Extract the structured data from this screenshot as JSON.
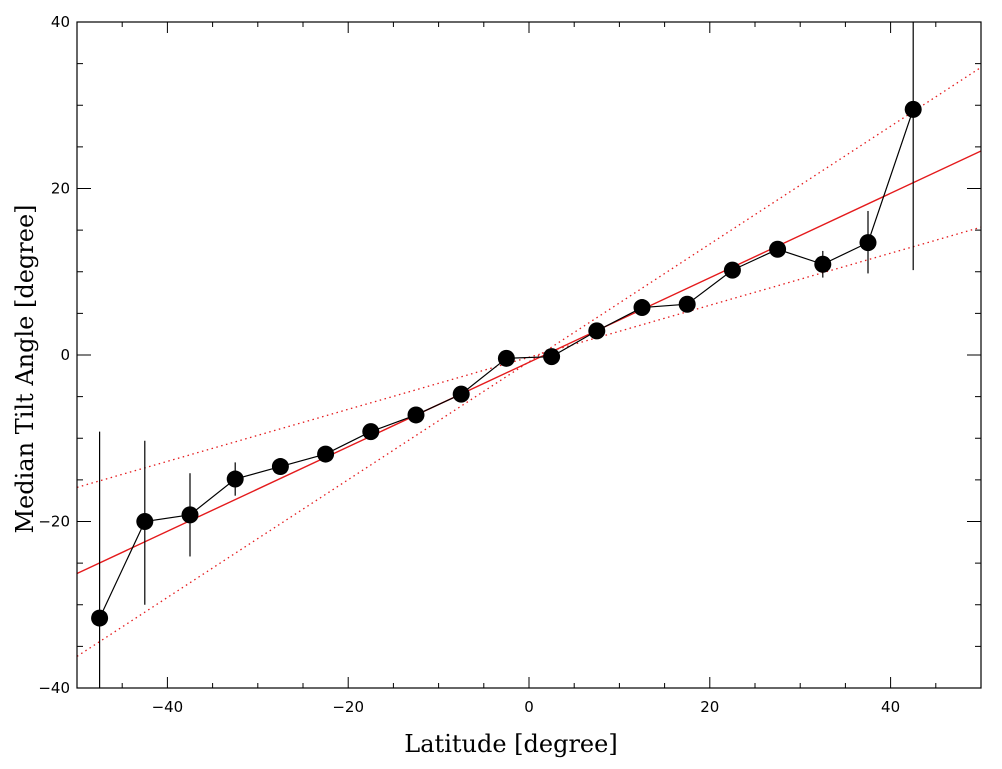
{
  "chart_data": {
    "type": "scatter",
    "title": "",
    "xlabel": "Latitude [degree]",
    "ylabel": "Median Tilt Angle [degree]",
    "xlim": [
      -50,
      50
    ],
    "ylim": [
      -40,
      40
    ],
    "xticks": [
      -40,
      -20,
      0,
      20,
      40
    ],
    "yticks": [
      -40,
      -20,
      0,
      20,
      40
    ],
    "xtick_labels": [
      "−40",
      "−20",
      "0",
      "20",
      "40"
    ],
    "ytick_labels": [
      "−40",
      "−20",
      "0",
      "20",
      "40"
    ],
    "grid": false,
    "series": [
      {
        "style": "markers-with-line-and-errorbars",
        "color": "#000000",
        "points": [
          {
            "x": -47.5,
            "y": -31.6,
            "ylow": -40,
            "yhigh": -9.2
          },
          {
            "x": -42.5,
            "y": -20.0,
            "ylow": -30.0,
            "yhigh": -10.3
          },
          {
            "x": -37.5,
            "y": -19.2,
            "ylow": -24.2,
            "yhigh": -14.2
          },
          {
            "x": -32.5,
            "y": -14.9,
            "ylow": -16.9,
            "yhigh": -12.9
          },
          {
            "x": -27.5,
            "y": -13.4,
            "ylow": -14.4,
            "yhigh": -12.4
          },
          {
            "x": -22.5,
            "y": -11.9,
            "ylow": -12.6,
            "yhigh": -11.2
          },
          {
            "x": -17.5,
            "y": -9.2,
            "ylow": -9.8,
            "yhigh": -8.6
          },
          {
            "x": -12.5,
            "y": -7.2,
            "ylow": -7.7,
            "yhigh": -6.7
          },
          {
            "x": -7.5,
            "y": -4.7,
            "ylow": -5.2,
            "yhigh": -4.2
          },
          {
            "x": -2.5,
            "y": -0.4,
            "ylow": -0.9,
            "yhigh": 0.1
          },
          {
            "x": 2.5,
            "y": -0.2,
            "ylow": -0.7,
            "yhigh": 0.3
          },
          {
            "x": 7.5,
            "y": 2.9,
            "ylow": 2.4,
            "yhigh": 3.4
          },
          {
            "x": 12.5,
            "y": 5.7,
            "ylow": 5.2,
            "yhigh": 6.2
          },
          {
            "x": 17.5,
            "y": 6.1,
            "ylow": 5.5,
            "yhigh": 6.7
          },
          {
            "x": 22.5,
            "y": 10.2,
            "ylow": 9.6,
            "yhigh": 10.8
          },
          {
            "x": 27.5,
            "y": 12.7,
            "ylow": 12.0,
            "yhigh": 13.4
          },
          {
            "x": 32.5,
            "y": 10.9,
            "ylow": 9.3,
            "yhigh": 12.5
          },
          {
            "x": 37.5,
            "y": 13.5,
            "ylow": 9.8,
            "yhigh": 17.3
          },
          {
            "x": 42.5,
            "y": 29.5,
            "ylow": 10.2,
            "yhigh": 40
          }
        ]
      },
      {
        "style": "solid-line",
        "color": "#e41a1c",
        "slope": 0.5075,
        "intercept": -0.875
      },
      {
        "style": "dotted-line",
        "color": "#e41a1c",
        "slope": 0.7075,
        "intercept": -0.825
      },
      {
        "style": "dotted-line",
        "color": "#e41a1c",
        "slope": 0.3125,
        "intercept": -0.275
      }
    ]
  }
}
